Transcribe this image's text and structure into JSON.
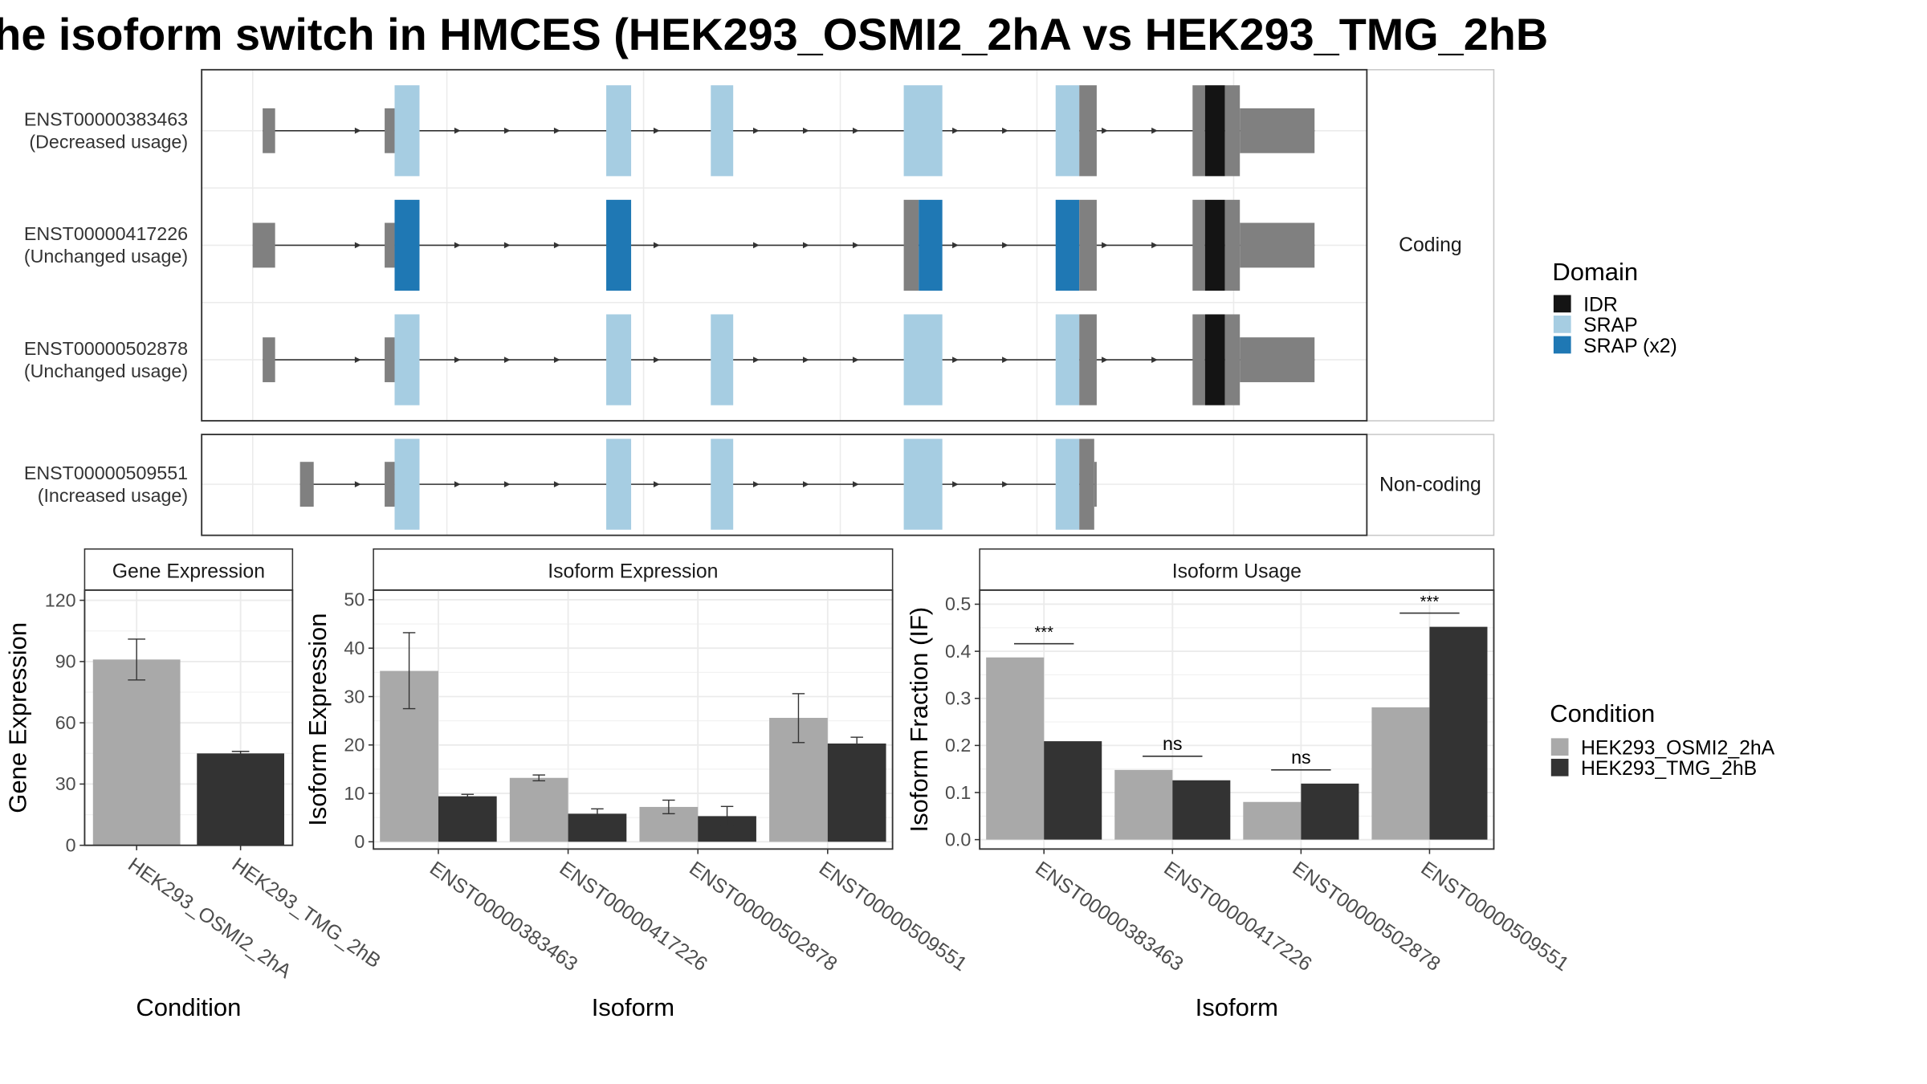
{
  "title": "he isoform switch in HMCES (HEK293_OSMI2_2hA vs HEK293_TMG_2hB",
  "colors": {
    "IDR": "#141414",
    "SRAP": "#a6cde2",
    "SRAP (x2)": "#1f78b4",
    "utr": "#808080",
    "cond_a": "#a9a9a9",
    "cond_b": "#333333"
  },
  "domain_legend": {
    "title": "Domain",
    "items": [
      {
        "label": "IDR",
        "color": "#141414"
      },
      {
        "label": "SRAP",
        "color": "#a6cde2"
      },
      {
        "label": "SRAP (x2)",
        "color": "#1f78b4"
      }
    ]
  },
  "condition_legend": {
    "title": "Condition",
    "items": [
      {
        "label": "HEK293_OSMI2_2hA",
        "color": "#a9a9a9"
      },
      {
        "label": "HEK293_TMG_2hB",
        "color": "#333333"
      }
    ]
  },
  "structure": {
    "facets": [
      {
        "label": "Coding",
        "transcripts": [
          {
            "id": "ENST00000383463",
            "usage": "(Decreased usage)",
            "variant": "srap"
          },
          {
            "id": "ENST00000417226",
            "usage": "(Unchanged usage)",
            "variant": "srap2"
          },
          {
            "id": "ENST00000502878",
            "usage": "(Unchanged usage)",
            "variant": "srap"
          }
        ]
      },
      {
        "label": "Non-coding",
        "transcripts": [
          {
            "id": "ENST00000509551",
            "usage": "(Increased usage)",
            "variant": "noncoding"
          }
        ]
      }
    ]
  },
  "chart_data": [
    {
      "type": "bar",
      "title": "Gene Expression",
      "xlabel": "Condition",
      "ylabel": "Gene Expression",
      "categories": [
        "HEK293_OSMI2_2hA",
        "HEK293_TMG_2hB"
      ],
      "values": [
        91,
        45
      ],
      "errors": [
        [
          81,
          101
        ],
        [
          44.5,
          46
        ]
      ],
      "ylim": [
        0,
        125
      ],
      "yticks": [
        0,
        30,
        60,
        90,
        120
      ]
    },
    {
      "type": "bar",
      "title": "Isoform Expression",
      "xlabel": "Isoform",
      "ylabel": "Isoform Expression",
      "categories": [
        "ENST00000383463",
        "ENST00000417226",
        "ENST00000502878",
        "ENST00000509551"
      ],
      "series": [
        {
          "name": "HEK293_OSMI2_2hA",
          "values": [
            35.3,
            13.2,
            7.2,
            25.6
          ],
          "errors": [
            [
              27.5,
              43.2
            ],
            [
              12.6,
              13.8
            ],
            [
              5.8,
              8.6
            ],
            [
              20.5,
              30.6
            ]
          ]
        },
        {
          "name": "HEK293_TMG_2hB",
          "values": [
            9.4,
            5.8,
            5.3,
            20.3
          ],
          "errors": [
            [
              9.0,
              9.8
            ],
            [
              4.8,
              6.8
            ],
            [
              3.3,
              7.3
            ],
            [
              19.0,
              21.6
            ]
          ]
        }
      ],
      "ylim": [
        -1.5,
        52
      ],
      "yticks": [
        0,
        10,
        20,
        30,
        40,
        50
      ]
    },
    {
      "type": "bar",
      "title": "Isoform Usage",
      "xlabel": "Isoform",
      "ylabel": "Isoform Fraction (IF)",
      "categories": [
        "ENST00000383463",
        "ENST00000417226",
        "ENST00000502878",
        "ENST00000509551"
      ],
      "series": [
        {
          "name": "HEK293_OSMI2_2hA",
          "values": [
            0.387,
            0.148,
            0.08,
            0.281
          ]
        },
        {
          "name": "HEK293_TMG_2hB",
          "values": [
            0.209,
            0.126,
            0.119,
            0.452
          ]
        }
      ],
      "significance": [
        "***",
        "ns",
        "ns",
        "***"
      ],
      "ylim": [
        -0.02,
        0.53
      ],
      "yticks": [
        "0.0",
        "0.1",
        "0.2",
        "0.3",
        "0.4",
        "0.5"
      ]
    }
  ]
}
